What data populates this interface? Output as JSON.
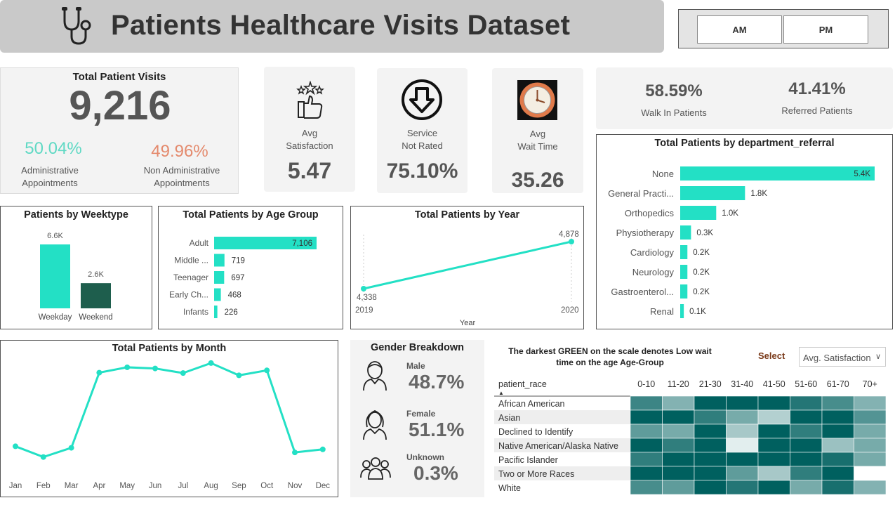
{
  "header": {
    "title": "Patients Healthcare Visits Dataset"
  },
  "slicer": {
    "options": [
      "AM",
      "PM"
    ]
  },
  "total_visits": {
    "title": "Total Patient Visits",
    "value": "9,216",
    "admin_pct": "50.04%",
    "admin_label_1": "Administrative",
    "admin_label_2": "Appointments",
    "nonadmin_pct": "49.96%",
    "nonadmin_label_1": "Non Administrative",
    "nonadmin_label_2": "Appointments"
  },
  "kpis": {
    "satisfaction": {
      "label_1": "Avg",
      "label_2": "Satisfaction",
      "value": "5.47"
    },
    "not_rated": {
      "label_1": "Service",
      "label_2": "Not Rated",
      "value": "75.10%"
    },
    "wait": {
      "label_1": "Avg",
      "label_2": "Wait Time",
      "value": "35.26"
    }
  },
  "walkin": {
    "walkin_pct": "58.59%",
    "walkin_label": "Walk In Patients",
    "referred_pct": "41.41%",
    "referred_label": "Referred Patients"
  },
  "gender": {
    "title": "Gender Breakdown",
    "male_label": "Male",
    "male_pct": "48.7%",
    "female_label": "Female",
    "female_pct": "51.1%",
    "unknown_label": "Unknown",
    "unknown_pct": "0.3%"
  },
  "heatmap_header": {
    "note": "The darkest GREEN on the scale denotes Low wait time on the age Age-Group",
    "select_label": "Select",
    "dropdown_value": "Avg. Satisfaction"
  },
  "colors": {
    "teal": "#23e0c5",
    "dark_green": "#1e5e4d",
    "heat_dark": "#00605f"
  },
  "chart_data": [
    {
      "id": "weektype",
      "type": "bar",
      "title": "Patients by Weektype",
      "categories": [
        "Weekday",
        "Weekend"
      ],
      "values": [
        6600,
        2600
      ],
      "labels": [
        "6.6K",
        "2.6K"
      ],
      "colors": [
        "#23e0c5",
        "#1e5e4d"
      ]
    },
    {
      "id": "age_group",
      "type": "bar",
      "orientation": "horizontal",
      "title": "Total Patients by Age Group",
      "categories": [
        "Adult",
        "Middle ...",
        "Teenager",
        "Early Ch...",
        "Infants"
      ],
      "values": [
        7106,
        719,
        697,
        468,
        226
      ],
      "labels": [
        "7,106",
        "719",
        "697",
        "468",
        "226"
      ]
    },
    {
      "id": "year",
      "type": "line",
      "title": "Total Patients by Year",
      "xlabel": "Year",
      "x": [
        "2019",
        "2020"
      ],
      "values": [
        4338,
        4878
      ],
      "labels": [
        "4,338",
        "4,878"
      ]
    },
    {
      "id": "department",
      "type": "bar",
      "orientation": "horizontal",
      "title": "Total Patients by department_referral",
      "categories": [
        "None",
        "General Practi...",
        "Orthopedics",
        "Physiotherapy",
        "Cardiology",
        "Neurology",
        "Gastroenterol...",
        "Renal"
      ],
      "values": [
        5400,
        1800,
        1000,
        300,
        200,
        200,
        200,
        100
      ],
      "labels": [
        "5.4K",
        "1.8K",
        "1.0K",
        "0.3K",
        "0.2K",
        "0.2K",
        "0.2K",
        "0.1K"
      ]
    },
    {
      "id": "month",
      "type": "line",
      "title": "Total Patients by Month",
      "x": [
        "Jan",
        "Feb",
        "Mar",
        "Apr",
        "May",
        "Jun",
        "Jul",
        "Aug",
        "Sep",
        "Oct",
        "Nov",
        "Dec"
      ],
      "values": [
        335,
        195,
        315,
        1295,
        1365,
        1350,
        1290,
        1420,
        1260,
        1325,
        255,
        295
      ]
    },
    {
      "id": "heatmap",
      "type": "heatmap",
      "row_header": "patient_race",
      "columns": [
        "0-10",
        "11-20",
        "21-30",
        "31-40",
        "41-50",
        "51-60",
        "61-70",
        "70+"
      ],
      "rows": [
        "African American",
        "Asian",
        "Declined to Identify",
        "Native American/Alaska Native",
        "Pacific Islander",
        "Two or More Races",
        "White"
      ],
      "values": [
        [
          0.75,
          0.45,
          1.0,
          1.0,
          1.0,
          0.85,
          0.7,
          0.45
        ],
        [
          1.0,
          1.0,
          0.8,
          0.5,
          0.25,
          1.0,
          1.0,
          0.65
        ],
        [
          0.6,
          0.5,
          1.0,
          0.3,
          1.0,
          0.8,
          1.0,
          0.5
        ],
        [
          1.0,
          0.8,
          1.0,
          0.05,
          1.0,
          1.0,
          0.35,
          0.5
        ],
        [
          0.8,
          1.0,
          1.0,
          1.0,
          1.0,
          1.0,
          0.9,
          0.5
        ],
        [
          1.0,
          1.0,
          1.0,
          0.6,
          0.3,
          0.8,
          1.0,
          0.0
        ],
        [
          0.7,
          0.6,
          1.0,
          0.85,
          1.0,
          0.5,
          0.9,
          0.45
        ]
      ]
    }
  ]
}
